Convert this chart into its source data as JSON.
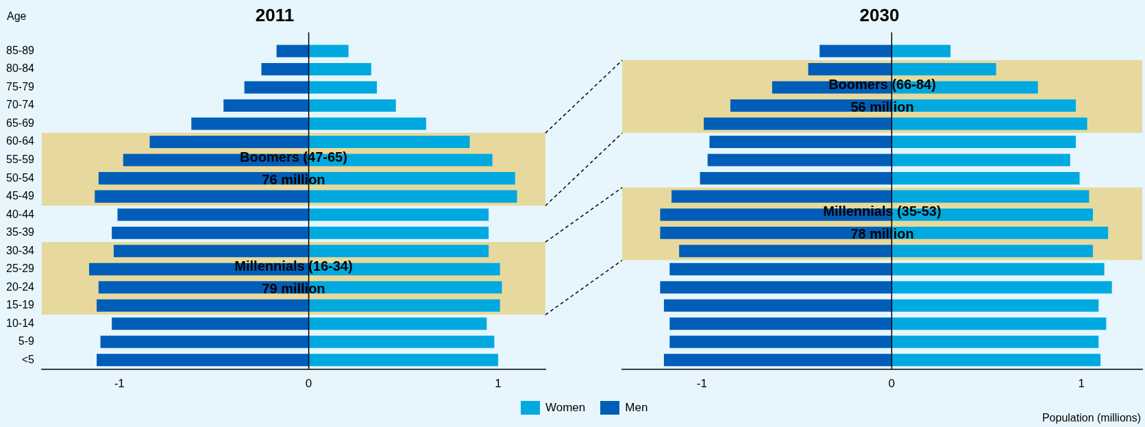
{
  "chart_data": [
    {
      "type": "bar",
      "title": "2011",
      "ylabel": "Age",
      "orientation": "horizontal",
      "categories": [
        "85-89",
        "80-84",
        "75-79",
        "70-74",
        "65-69",
        "60-64",
        "55-59",
        "50-54",
        "45-49",
        "40-44",
        "35-39",
        "30-34",
        "25-29",
        "20-24",
        "15-19",
        "10-14",
        "5-9",
        "<5"
      ],
      "series": [
        {
          "name": "Women",
          "color": "#00a9e0",
          "values": [
            0.21,
            0.33,
            0.36,
            0.46,
            0.62,
            0.85,
            0.97,
            1.09,
            1.1,
            0.95,
            0.95,
            0.95,
            1.01,
            1.02,
            1.01,
            0.94,
            0.98,
            1.0
          ]
        },
        {
          "name": "Men",
          "color": "#005eb8",
          "values": [
            -0.17,
            -0.25,
            -0.34,
            -0.45,
            -0.62,
            -0.84,
            -0.98,
            -1.11,
            -1.13,
            -1.01,
            -1.04,
            -1.03,
            -1.16,
            -1.11,
            -1.12,
            -1.04,
            -1.1,
            -1.12
          ]
        }
      ],
      "xlim": [
        -1.41,
        1.25
      ],
      "xticks": [
        -1,
        0,
        1
      ],
      "grid": false,
      "legend": "bottom",
      "stacked": true,
      "ref_lines": [
        {
          "axis": "x",
          "value": 0,
          "color": "#000000"
        }
      ],
      "bands": [
        {
          "axis": "y",
          "from": "60-64",
          "to": "45-49",
          "label": "Boomers (47-65)\n76 million",
          "color": "#e8c96a"
        },
        {
          "axis": "y",
          "from": "30-34",
          "to": "15-19",
          "label": "Millennials (16-34)\n79 million",
          "color": "#e8c96a"
        }
      ]
    },
    {
      "type": "bar",
      "title": "2030",
      "xlabel": "Population (millions)",
      "orientation": "horizontal",
      "categories": [
        "85-89",
        "80-84",
        "75-79",
        "70-74",
        "65-69",
        "60-64",
        "55-59",
        "50-54",
        "45-49",
        "40-44",
        "35-39",
        "30-34",
        "25-29",
        "20-24",
        "15-19",
        "10-14",
        "5-9",
        "<5"
      ],
      "series": [
        {
          "color": "#00a9e0",
          "values": [
            0.31,
            0.55,
            0.77,
            0.97,
            1.03,
            0.97,
            0.94,
            0.99,
            1.04,
            1.06,
            1.14,
            1.06,
            1.12,
            1.16,
            1.09,
            1.13,
            1.09,
            1.1
          ]
        },
        {
          "color": "#005eb8",
          "values": [
            -0.38,
            -0.44,
            -0.63,
            -0.85,
            -0.99,
            -0.96,
            -0.97,
            -1.01,
            -1.16,
            -1.22,
            -1.22,
            -1.12,
            -1.17,
            -1.22,
            -1.2,
            -1.17,
            -1.17,
            -1.2
          ]
        }
      ],
      "xlim": [
        -1.42,
        1.32
      ],
      "xticks": [
        -1,
        0,
        1
      ],
      "grid": false,
      "tick_labels": "x",
      "stacked": true,
      "ref_lines": [
        {
          "axis": "x",
          "value": 0,
          "color": "#000000"
        }
      ],
      "bands": [
        {
          "axis": "y",
          "from": "80-84",
          "to": "65-69",
          "label": "Boomers (66-84)\n56 million",
          "color": "#e8c96a"
        },
        {
          "axis": "y",
          "from": "45-49",
          "to": "30-34",
          "label": "Millennials (35-53)\n78 million",
          "color": "#e8c96a"
        }
      ]
    }
  ]
}
